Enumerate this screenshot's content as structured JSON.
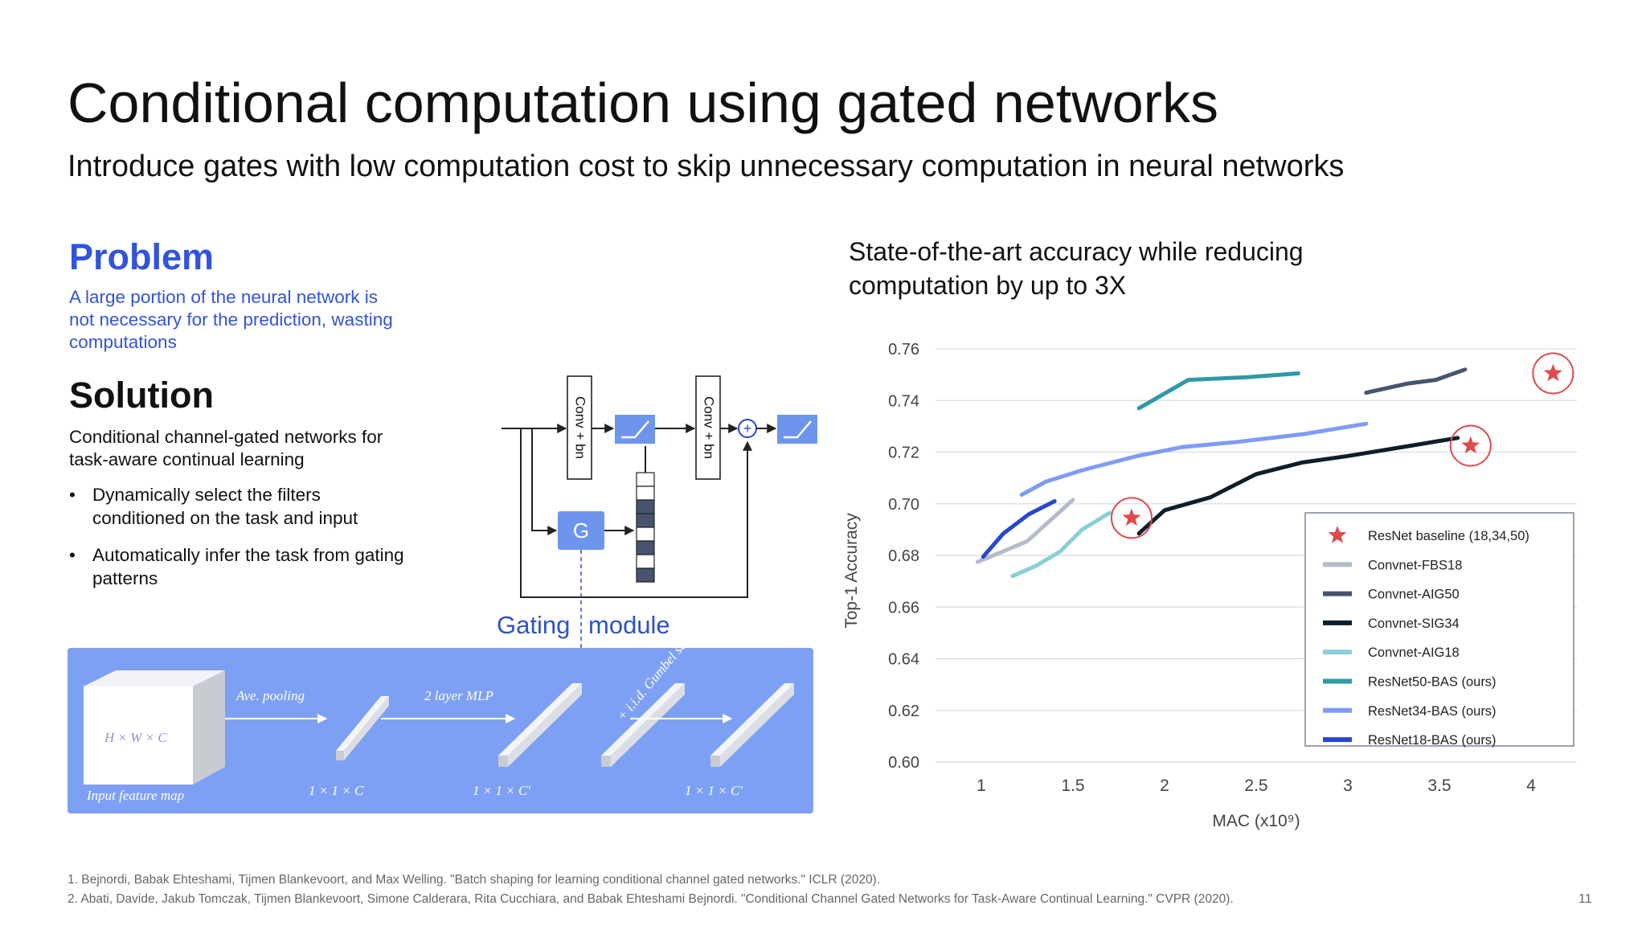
{
  "slide": {
    "title": "Conditional computation using gated networks",
    "subtitle": "Introduce gates with low computation cost to skip unnecessary computation in neural networks",
    "problem": {
      "heading": "Problem",
      "text": "A large portion of the neural network is not necessary for the prediction, wasting computations"
    },
    "solution": {
      "heading": "Solution",
      "text": "Conditional channel-gated networks for task-aware continual learning",
      "bullets": [
        "Dynamically select the filters conditioned on the task and input",
        "Automatically infer the task from gating patterns"
      ],
      "bullet_marker": "•"
    },
    "diagram": {
      "conv_label": "Conv + bn",
      "gate_label": "G",
      "plus_symbol": "+",
      "gating_label_left": "Gating",
      "gating_label_right": "module",
      "panel": {
        "input_dims": "H × W × C",
        "input_caption": "Input feature map",
        "pool_label": "Ave. pooling",
        "mlp_label": "2 layer MLP",
        "gumbel_label": "+ i.i.d. Gumbel samples",
        "dim1": "1 × 1 × C",
        "dim2": "1 × 1 × C′",
        "dim3": "1 × 1 × C′"
      }
    },
    "chart_title": "State-of-the-art accuracy while reducing computation by up to 3X",
    "references": [
      "1. Bejnordi, Babak Ehteshami, Tijmen Blankevoort, and Max Welling. \"Batch shaping for learning conditional channel gated networks.\" ICLR (2020).",
      "2. Abati, Davide, Jakub Tomczak, Tijmen Blankevoort, Simone Calderara, Rita Cucchiara, and Babak Ehteshami Bejnordi. \"Conditional Channel Gated Networks for Task-Aware Continual Learning.\" CVPR (2020)."
    ],
    "page_number": "11"
  },
  "colors": {
    "problem_blue": "#3253DC",
    "panel_blue": "#7ea0f4",
    "gate_blue": "#6d95ee",
    "star_red": "#e04a4a"
  },
  "chart_data": {
    "type": "line",
    "xlabel": "MAC (x10⁹)",
    "ylabel": "Top-1 Accuracy",
    "xlim": [
      0.75,
      4.25
    ],
    "ylim": [
      0.6,
      0.76
    ],
    "xticks": [
      1,
      1.5,
      2,
      2.5,
      3,
      3.5,
      4
    ],
    "xtick_labels": [
      "1",
      "1.5",
      "2",
      "2.5",
      "3",
      "3.5",
      "4"
    ],
    "yticks": [
      0.6,
      0.62,
      0.64,
      0.66,
      0.68,
      0.7,
      0.72,
      0.74,
      0.76
    ],
    "ytick_labels": [
      "0.60",
      "0.62",
      "0.64",
      "0.66",
      "0.68",
      "0.70",
      "0.72",
      "0.74",
      "0.76"
    ],
    "grid": "horizontal",
    "legend_position": "right",
    "series": [
      {
        "name": "ResNet baseline (18,34,50)",
        "kind": "marker",
        "color": "#e04a4a",
        "x": [
          1.82,
          3.67,
          4.12
        ],
        "y": [
          0.6945,
          0.7225,
          0.7505
        ]
      },
      {
        "name": "Convnet-FBS18",
        "kind": "line",
        "color": "#b4bccb",
        "x": [
          0.98,
          1.1,
          1.25,
          1.5
        ],
        "y": [
          0.6775,
          0.681,
          0.6855,
          0.7015
        ]
      },
      {
        "name": "Convnet-AIG50",
        "kind": "line",
        "color": "#46546f",
        "x": [
          3.1,
          3.32,
          3.48,
          3.64
        ],
        "y": [
          0.743,
          0.7465,
          0.748,
          0.752
        ]
      },
      {
        "name": "Convnet-SIG34",
        "kind": "line",
        "color": "#0e1e2a",
        "x": [
          1.86,
          2.0,
          2.25,
          2.5,
          2.75,
          3.0,
          3.3,
          3.6
        ],
        "y": [
          0.6885,
          0.6975,
          0.7025,
          0.7115,
          0.716,
          0.7185,
          0.722,
          0.7255
        ]
      },
      {
        "name": "Convnet-AIG18",
        "kind": "line",
        "color": "#8bcfd6",
        "x": [
          1.17,
          1.3,
          1.43,
          1.55,
          1.7
        ],
        "y": [
          0.672,
          0.676,
          0.6815,
          0.69,
          0.6965
        ]
      },
      {
        "name": "ResNet50-BAS (ours)",
        "kind": "line",
        "color": "#2e9aa6",
        "x": [
          1.86,
          2.13,
          2.45,
          2.73
        ],
        "y": [
          0.737,
          0.748,
          0.749,
          0.7505
        ]
      },
      {
        "name": "ResNet34-BAS (ours)",
        "kind": "line",
        "color": "#7e9cf6",
        "x": [
          1.22,
          1.35,
          1.55,
          1.85,
          2.1,
          2.4,
          2.76,
          3.1
        ],
        "y": [
          0.7035,
          0.7085,
          0.713,
          0.7185,
          0.722,
          0.724,
          0.727,
          0.731
        ]
      },
      {
        "name": "ResNet18-BAS (ours)",
        "kind": "line",
        "color": "#2846d2",
        "x": [
          1.01,
          1.12,
          1.26,
          1.4
        ],
        "y": [
          0.6795,
          0.6885,
          0.696,
          0.701
        ]
      }
    ]
  }
}
